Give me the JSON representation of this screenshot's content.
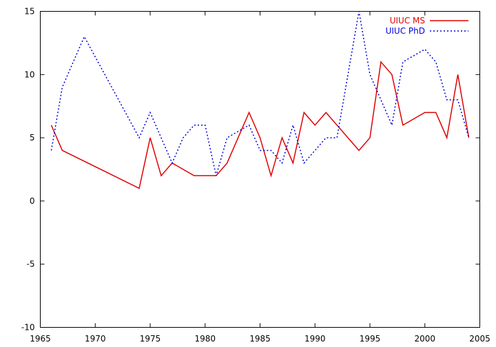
{
  "chart_data": {
    "type": "line",
    "title": "",
    "xlabel": "",
    "ylabel": "",
    "xlim": [
      1965,
      2005
    ],
    "ylim": [
      -10,
      15
    ],
    "xticks": [
      1965,
      1970,
      1975,
      1980,
      1985,
      1990,
      1995,
      2000,
      2005
    ],
    "yticks": [
      -10,
      -5,
      0,
      5,
      10,
      15
    ],
    "xtick_labels": [
      "1965",
      "1970",
      "1975",
      "1980",
      "1985",
      "1990",
      "1995",
      "2000",
      "2005"
    ],
    "ytick_labels": [
      "-10",
      "-5",
      "0",
      "5",
      "10",
      "15"
    ],
    "grid": false,
    "legend_position": "top-right",
    "series": [
      {
        "name": "UIUC MS",
        "color": "#e00000",
        "style": "solid",
        "x": [
          1966,
          1967,
          1974,
          1975,
          1976,
          1977,
          1979,
          1981,
          1982,
          1984,
          1985,
          1986,
          1987,
          1988,
          1989,
          1990,
          1991,
          1994,
          1995,
          1996,
          1997,
          1998,
          2000,
          2001,
          2002,
          2003,
          2004
        ],
        "y": [
          6,
          4,
          1,
          5,
          2,
          3,
          2,
          2,
          3,
          7,
          5,
          2,
          5,
          3,
          7,
          6,
          7,
          4,
          5,
          11,
          10,
          6,
          7,
          7,
          5,
          10,
          5
        ]
      },
      {
        "name": "UIUC PhD",
        "color": "#0000e0",
        "style": "dotted",
        "x": [
          1966,
          1967,
          1969,
          1974,
          1975,
          1976,
          1977,
          1978,
          1979,
          1980,
          1981,
          1982,
          1984,
          1985,
          1986,
          1987,
          1988,
          1989,
          1991,
          1992,
          1994,
          1995,
          1997,
          1998,
          2000,
          2001,
          2002,
          2003,
          2004
        ],
        "y": [
          4,
          9,
          13,
          5,
          7,
          5,
          3,
          5,
          6,
          6,
          2,
          5,
          6,
          4,
          4,
          3,
          6,
          3,
          5,
          5,
          15,
          10,
          6,
          11,
          12,
          11,
          8,
          8,
          5
        ]
      }
    ]
  }
}
